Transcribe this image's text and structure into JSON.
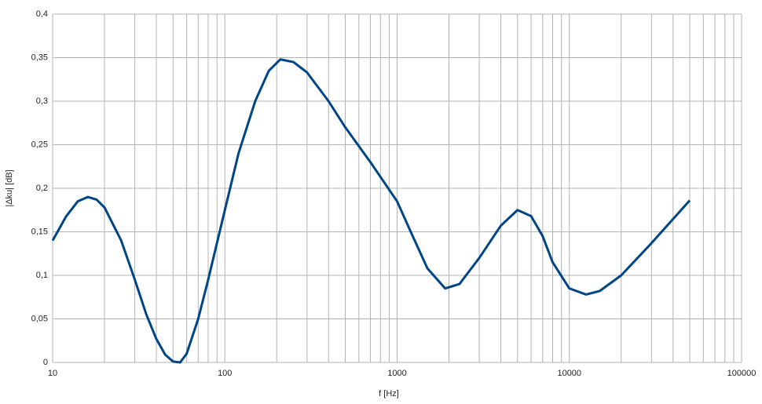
{
  "chart_data": {
    "type": "line",
    "x_label": "f [Hz]",
    "y_label": "|Δku| [dB]",
    "xscale": "log",
    "grid": true,
    "xlim": [
      10,
      100000
    ],
    "xticks": [
      10,
      100,
      1000,
      10000,
      100000
    ],
    "ylim": [
      0,
      0.4
    ],
    "yticks": [
      0,
      {
        "value": 0.05,
        "label": "0,05"
      },
      {
        "value": 0.1,
        "label": "0,1"
      },
      {
        "value": 0.15,
        "label": "0,15"
      },
      {
        "value": 0.2,
        "label": "0,2"
      },
      {
        "value": 0.25,
        "label": "0,25"
      },
      {
        "value": 0.3,
        "label": "0,3"
      },
      {
        "value": 0.35,
        "label": "0,35"
      },
      {
        "value": 0.4,
        "label": "0,4"
      }
    ],
    "x": [
      10,
      12,
      14,
      16,
      18,
      20,
      25,
      30,
      35,
      40,
      45,
      50,
      55,
      60,
      70,
      80,
      100,
      120,
      150,
      180,
      210,
      250,
      300,
      400,
      500,
      700,
      1000,
      1200,
      1500,
      1900,
      2300,
      3000,
      4000,
      5000,
      6000,
      7000,
      8000,
      10000,
      12500,
      15000,
      20000,
      30000,
      50000
    ],
    "series": [
      {
        "color": "#004586",
        "values": [
          0.14,
          0.168,
          0.185,
          0.19,
          0.187,
          0.178,
          0.14,
          0.095,
          0.055,
          0.027,
          0.009,
          0.001,
          0.0,
          0.01,
          0.05,
          0.095,
          0.175,
          0.24,
          0.3,
          0.335,
          0.348,
          0.345,
          0.333,
          0.3,
          0.27,
          0.23,
          0.185,
          0.15,
          0.108,
          0.085,
          0.09,
          0.12,
          0.157,
          0.175,
          0.168,
          0.145,
          0.115,
          0.085,
          0.078,
          0.082,
          0.1,
          0.137,
          0.186
        ]
      }
    ]
  }
}
